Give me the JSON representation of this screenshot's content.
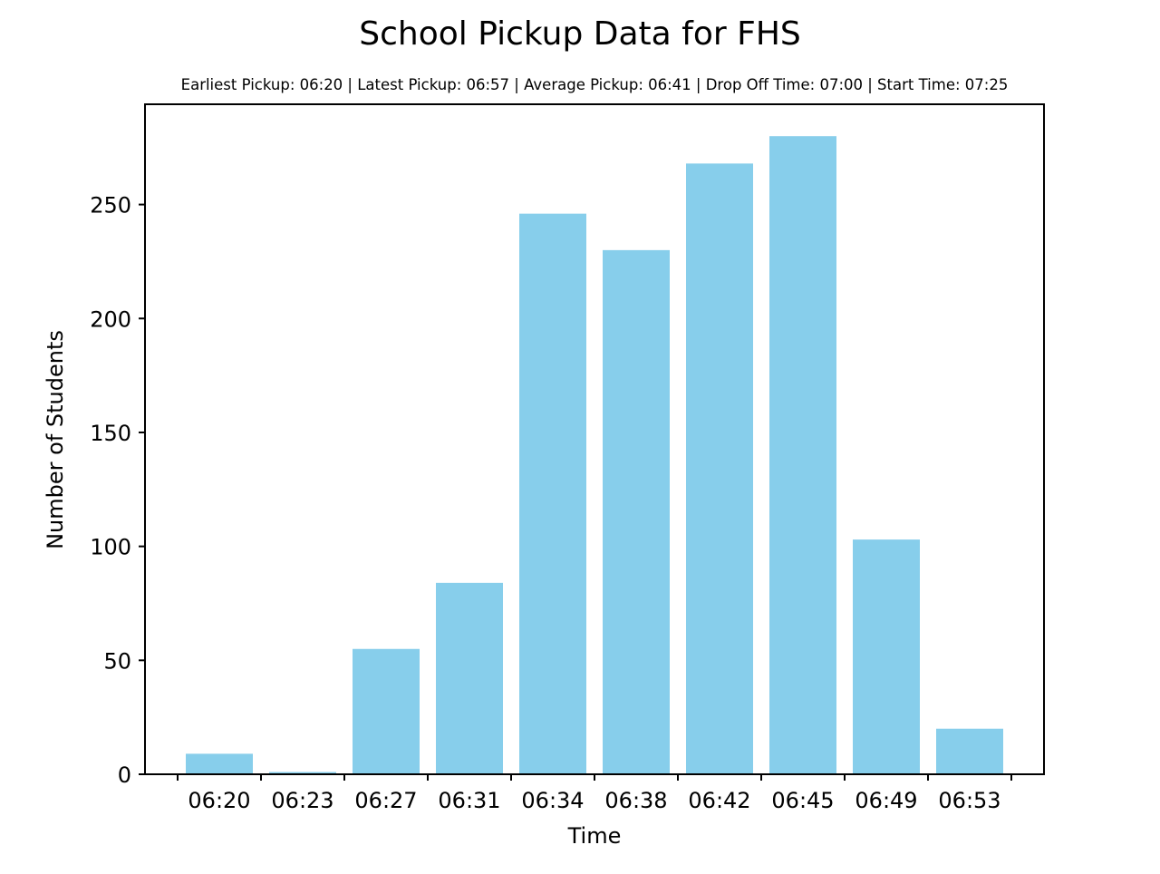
{
  "chart_data": {
    "type": "bar",
    "title": "School Pickup Data for FHS",
    "subtitle": "Earliest Pickup: 06:20 | Latest Pickup: 06:57 | Average Pickup: 06:41 | Drop Off Time: 07:00 | Start Time: 07:25",
    "xlabel": "Time",
    "ylabel": "Number of Students",
    "ylim": [
      0,
      294
    ],
    "yticks": [
      0,
      50,
      100,
      150,
      200,
      250
    ],
    "categories": [
      "06:20",
      "06:23",
      "06:27",
      "06:31",
      "06:34",
      "06:38",
      "06:42",
      "06:45",
      "06:49",
      "06:53"
    ],
    "values": [
      9,
      1,
      55,
      84,
      246,
      230,
      268,
      280,
      103,
      20
    ],
    "bar_color": "#87CEEB",
    "grid": false,
    "legend": "none"
  }
}
